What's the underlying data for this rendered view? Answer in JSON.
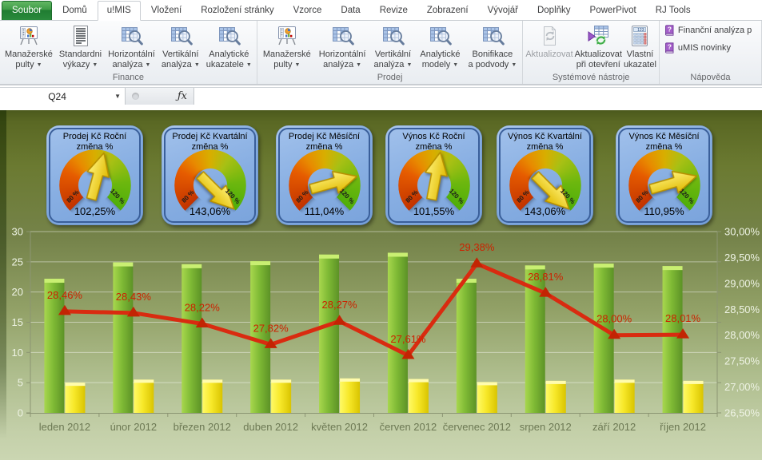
{
  "ribbon": {
    "tabs": [
      {
        "label": "Soubor",
        "type": "file"
      },
      {
        "label": "Domů"
      },
      {
        "label": "u!MIS",
        "active": true
      },
      {
        "label": "Vložení"
      },
      {
        "label": "Rozložení stránky"
      },
      {
        "label": "Vzorce"
      },
      {
        "label": "Data"
      },
      {
        "label": "Revize"
      },
      {
        "label": "Zobrazení"
      },
      {
        "label": "Vývojář"
      },
      {
        "label": "Doplňky"
      },
      {
        "label": "PowerPivot"
      },
      {
        "label": "RJ Tools"
      }
    ],
    "groups": [
      {
        "label": "Finance",
        "buttons": [
          {
            "line1": "Manažerské",
            "line2": "pulty",
            "dropdown": true,
            "icon": "easel-chart"
          },
          {
            "line1": "Standardni",
            "line2": "výkazy",
            "dropdown": true,
            "icon": "striped-report"
          },
          {
            "line1": "Horizontální",
            "line2": "analýza",
            "dropdown": true,
            "icon": "table-magnifier"
          },
          {
            "line1": "Vertikální",
            "line2": "analýza",
            "dropdown": true,
            "icon": "table-magnifier"
          },
          {
            "line1": "Analytické",
            "line2": "ukazatele",
            "dropdown": true,
            "icon": "table-magnifier"
          }
        ]
      },
      {
        "label": "Prodej",
        "buttons": [
          {
            "line1": "Manažerské",
            "line2": "pulty",
            "dropdown": true,
            "icon": "easel-chart"
          },
          {
            "line1": "Horizontální",
            "line2": "analýza",
            "dropdown": true,
            "icon": "table-magnifier"
          },
          {
            "line1": "Vertikální",
            "line2": "analýza",
            "dropdown": true,
            "icon": "table-magnifier"
          },
          {
            "line1": "Analytické",
            "line2": "modely",
            "dropdown": true,
            "icon": "table-magnifier"
          },
          {
            "line1": "Bonifikace",
            "line2": "a podvody",
            "dropdown": true,
            "icon": "table-magnifier"
          }
        ]
      },
      {
        "label": "Systémové nástroje",
        "buttons": [
          {
            "line1": "Aktualizovat",
            "line2": "",
            "dropdown": false,
            "icon": "refresh-document",
            "disabled": true
          },
          {
            "line1": "Aktualizovat",
            "line2": "při otevření",
            "dropdown": false,
            "icon": "table-refresh"
          },
          {
            "line1": "Vlastní",
            "line2": "ukazatel",
            "dropdown": false,
            "icon": "calculator"
          }
        ]
      },
      {
        "label": "Nápověda",
        "items": [
          {
            "label": "Finanční analýza p",
            "icon": "help-book"
          },
          {
            "label": "uMIS novinky",
            "icon": "help-book"
          }
        ]
      }
    ]
  },
  "formula_bar": {
    "cell_reference": "Q24",
    "fx_label": "ƒx",
    "formula_value": ""
  },
  "gauges": [
    {
      "line1": "Prodej Kč Roční",
      "line2": "změna %",
      "value": "102,25%",
      "min_label": "80 %",
      "max_label": "120 %"
    },
    {
      "line1": "Prodej Kč Kvartální",
      "line2": "změna %",
      "value": "143,06%",
      "min_label": "80 %",
      "max_label": "120 %"
    },
    {
      "line1": "Prodej Kč Měsíční",
      "line2": "změna %",
      "value": "111,04%",
      "min_label": "80 %",
      "max_label": "120 %"
    },
    {
      "line1": "Výnos Kč Roční",
      "line2": "změna %",
      "value": "101,55%",
      "min_label": "80 %",
      "max_label": "120 %"
    },
    {
      "line1": "Výnos Kč Kvartální",
      "line2": "změna %",
      "value": "143,06%",
      "min_label": "80 %",
      "max_label": "120 %"
    },
    {
      "line1": "Výnos Kč Měsíční",
      "line2": "změna %",
      "value": "110,95%",
      "min_label": "80 %",
      "max_label": "120 %"
    }
  ],
  "chart_data": {
    "type": "combo-bar-line",
    "categories": [
      "leden 2012",
      "únor 2012",
      "březen 2012",
      "duben 2012",
      "květen 2012",
      "červen 2012",
      "červenec 2012",
      "srpen 2012",
      "září 2012",
      "říjen 2012"
    ],
    "series": [
      {
        "name": "green-bars",
        "type": "bar",
        "axis": "left",
        "values": [
          22.2,
          24.9,
          24.6,
          25.1,
          26.2,
          26.5,
          22.2,
          24.4,
          24.7,
          24.3
        ]
      },
      {
        "name": "yellow-bars",
        "type": "bar",
        "axis": "left",
        "values": [
          5.0,
          5.5,
          5.5,
          5.5,
          5.7,
          5.6,
          5.1,
          5.3,
          5.5,
          5.3
        ]
      },
      {
        "name": "red-line",
        "type": "line",
        "axis": "right",
        "values": [
          28.46,
          28.43,
          28.22,
          27.82,
          28.27,
          27.61,
          29.38,
          28.81,
          28.0,
          28.01
        ],
        "labels": [
          "28,46%",
          "28,43%",
          "28,22%",
          "27,82%",
          "28,27%",
          "27,61%",
          "29,38%",
          "28,81%",
          "28,00%",
          "28,01%"
        ]
      }
    ],
    "left_axis": {
      "min": 0,
      "max": 30,
      "step": 5,
      "ticks": [
        "0",
        "5",
        "10",
        "15",
        "20",
        "25",
        "30"
      ]
    },
    "right_axis": {
      "min": 26.5,
      "max": 30,
      "step": 0.5,
      "ticks": [
        "26,50%",
        "27,00%",
        "27,50%",
        "28,00%",
        "28,50%",
        "29,00%",
        "29,50%",
        "30,00%"
      ]
    },
    "grid": true,
    "legend": false
  }
}
